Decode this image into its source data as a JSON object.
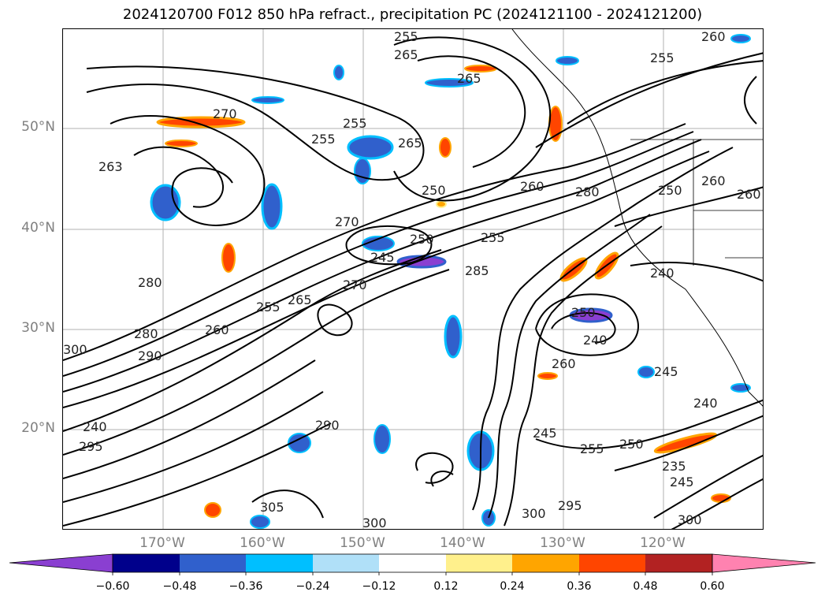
{
  "title": "2024120700 F012 850 hPa refract., precipitation PC (2024121100 - 2024121200)",
  "lat_labels": [
    "50°N",
    "40°N",
    "30°N",
    "20°N"
  ],
  "lon_labels": [
    "170°W",
    "160°W",
    "150°W",
    "140°W",
    "130°W",
    "120°W"
  ],
  "colorbar": {
    "colors": [
      "#8a3fd1",
      "#00008b",
      "#3060cc",
      "#00bfff",
      "#b0e0f8",
      "#ffffff",
      "#fff08c",
      "#ffa500",
      "#ff4500",
      "#b22222",
      "#ff82b0"
    ],
    "tick_labels": [
      "−0.60",
      "−0.48",
      "−0.36",
      "−0.24",
      "−0.12",
      "0.12",
      "0.24",
      "0.36",
      "0.48",
      "0.60"
    ]
  },
  "contour_labels": [
    "255",
    "265",
    "265",
    "260",
    "255",
    "270",
    "255",
    "255",
    "265",
    "263",
    "250",
    "270",
    "245",
    "250",
    "285",
    "280",
    "265",
    "270",
    "255",
    "260",
    "280",
    "290",
    "295",
    "240",
    "290",
    "300",
    "305",
    "300",
    "300",
    "295",
    "245",
    "255",
    "250",
    "240",
    "245",
    "260",
    "240",
    "250",
    "260",
    "260",
    "260",
    "250",
    "240",
    "280",
    "255",
    "235",
    "245",
    "300"
  ]
}
